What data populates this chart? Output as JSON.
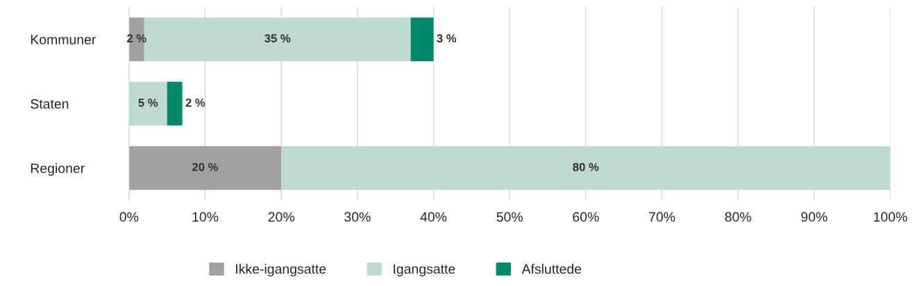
{
  "chart_data": {
    "type": "bar",
    "orientation": "horizontal",
    "stacked": true,
    "categories": [
      "Kommuner",
      "Staten",
      "Regioner"
    ],
    "series": [
      {
        "name": "Ikke-igangsatte",
        "color": "#a0a0a0",
        "values": [
          2,
          null,
          20
        ],
        "value_labels": [
          "2 %",
          null,
          "20 %"
        ]
      },
      {
        "name": "Igangsatte",
        "color": "#bfd9cf",
        "values": [
          35,
          5,
          80
        ],
        "value_labels": [
          "35 %",
          "5 %",
          "80 %"
        ]
      },
      {
        "name": "Afsluttede",
        "color": "#00896a",
        "values": [
          3,
          2,
          null
        ],
        "value_labels": [
          "3 %",
          "2 %",
          null
        ]
      }
    ],
    "xlim": [
      0,
      100
    ],
    "xticks": [
      {
        "value": 0,
        "label": "0%"
      },
      {
        "value": 10,
        "label": "10%"
      },
      {
        "value": 20,
        "label": "20%"
      },
      {
        "value": 30,
        "label": "30%"
      },
      {
        "value": 40,
        "label": "40%"
      },
      {
        "value": 50,
        "label": "50%"
      },
      {
        "value": 60,
        "label": "60%"
      },
      {
        "value": 70,
        "label": "70%"
      },
      {
        "value": 80,
        "label": "80%"
      },
      {
        "value": 90,
        "label": "90%"
      },
      {
        "value": 100,
        "label": "100%"
      }
    ],
    "grid": "x",
    "legend": "bottom"
  }
}
